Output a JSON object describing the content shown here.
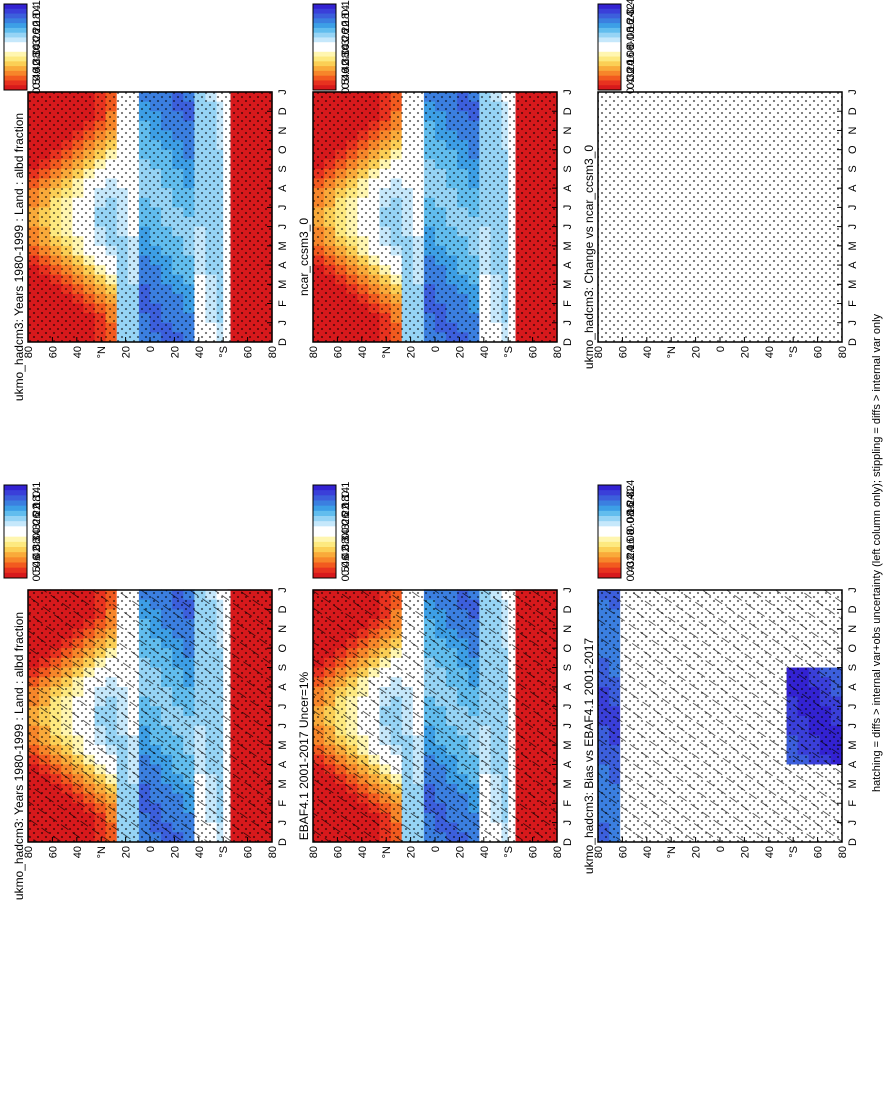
{
  "figure": {
    "footer": "hatching = diffs > internal var+obs uncertainty (left column only); stippling = diffs > internal var only"
  },
  "months": [
    "D",
    "J",
    "F",
    "M",
    "A",
    "M",
    "J",
    "J",
    "A",
    "S",
    "O",
    "N",
    "D",
    "J"
  ],
  "lat_ticks": [
    "80",
    "60",
    "40",
    "°N",
    "20",
    "0",
    "20",
    "40",
    "°S",
    "60",
    "80"
  ],
  "colorbars": {
    "clim": {
      "labels": [
        "0.5",
        "0.46",
        "0.42",
        "0.38",
        "0.34",
        "0.3",
        "0.26",
        "0.22",
        "0.18",
        "0.14",
        "0.1"
      ],
      "colors": [
        "#d7191c",
        "#e8321f",
        "#f25a1f",
        "#f7862a",
        "#f9aa3a",
        "#fbcf55",
        "#fde97f",
        "#fff6b0",
        "#ffffff",
        "#ffffff",
        "#c6e8fb",
        "#96d4f5",
        "#61bdee",
        "#3d9fe6",
        "#3b7fe0",
        "#3c5fdc",
        "#3a3fd9",
        "#3322d2"
      ]
    },
    "diff": {
      "labels": [
        "0.4",
        "0.32",
        "0.24",
        "0.16",
        "0.08",
        "0",
        "-0.08",
        "-0.16",
        "-0.24",
        "-0.32",
        "-0.4"
      ],
      "colors": [
        "#d7191c",
        "#e8321f",
        "#f25a1f",
        "#f7862a",
        "#f9aa3a",
        "#fbcf55",
        "#fde97f",
        "#fff6b0",
        "#ffffff",
        "#ffffff",
        "#c6e8fb",
        "#96d4f5",
        "#61bdee",
        "#3d9fe6",
        "#3b7fe0",
        "#3c5fdc",
        "#3a3fd9",
        "#3322d2"
      ]
    }
  },
  "chart_data": [
    {
      "type": "heatmap",
      "title": "ukmo_hadcm3: Years 1980-1999 : Land : albd fraction",
      "x": "month (D..J)",
      "y": "latitude (80N..80S)",
      "colorbar": "clim",
      "overlay": "hatching+stippling"
    },
    {
      "type": "heatmap",
      "title": "ukmo_hadcm3: Years 1980-1999 : Land : albd fraction",
      "x": "month (D..J)",
      "y": "latitude (80N..80S)",
      "colorbar": "clim",
      "overlay": "stippling"
    },
    {
      "type": "heatmap",
      "title": "EBAF4.1 2001-2017 Uncer=1%",
      "x": "month (D..J)",
      "y": "latitude (80N..80S)",
      "colorbar": "clim",
      "overlay": "hatching+stippling"
    },
    {
      "type": "heatmap",
      "title": "ncar_ccsm3_0",
      "x": "month (D..J)",
      "y": "latitude (80N..80S)",
      "colorbar": "clim",
      "overlay": "stippling"
    },
    {
      "type": "heatmap",
      "title": "ukmo_hadcm3: Bias vs EBAF4.1 2001-2017",
      "x": "month (D..J)",
      "y": "latitude (80N..80S)",
      "colorbar": "diff",
      "overlay": "hatching+stippling"
    },
    {
      "type": "heatmap",
      "title": "ukmo_hadcm3: Change vs ncar_ccsm3_0",
      "x": "month (D..J)",
      "y": "latitude (80N..80S)",
      "colorbar": "diff",
      "overlay": "stippling"
    }
  ]
}
